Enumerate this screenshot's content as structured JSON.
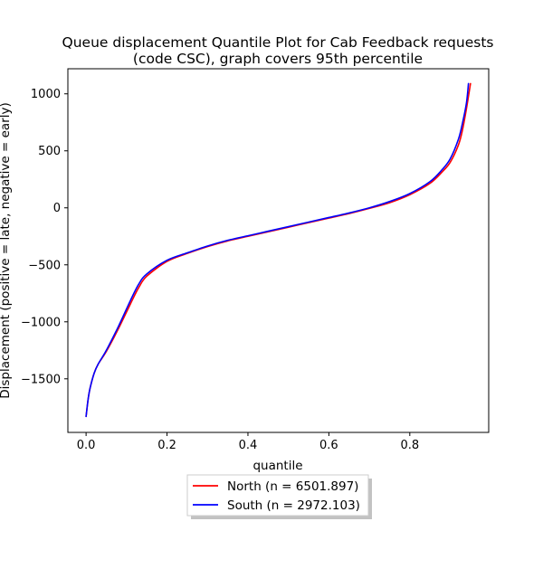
{
  "chart_data": {
    "type": "line",
    "title_lines": [
      "Queue displacement Quantile Plot for Cab Feedback  requests",
      "(code CSC), graph covers 95th percentile"
    ],
    "xlabel": "quantile",
    "ylabel": "Displacement (positive = late, negative = early)",
    "xlim": [
      -0.045,
      0.995
    ],
    "ylim": [
      -1970,
      1220
    ],
    "xticks": [
      0.0,
      0.2,
      0.4,
      0.6,
      0.8
    ],
    "xtick_labels": [
      "0.0",
      "0.2",
      "0.4",
      "0.6",
      "0.8"
    ],
    "yticks": [
      -1500,
      -1000,
      -500,
      0,
      500,
      1000
    ],
    "ytick_labels": [
      "−1500",
      "−1000",
      "−500",
      "0",
      "500",
      "1000"
    ],
    "grid": false,
    "legend_position": "below plot, centered",
    "series": [
      {
        "name": "North (n = 6501.897)",
        "color": "#ff0000",
        "x": [
          0.0,
          0.005,
          0.01,
          0.02,
          0.03,
          0.05,
          0.08,
          0.11,
          0.13,
          0.15,
          0.2,
          0.25,
          0.3,
          0.35,
          0.4,
          0.45,
          0.5,
          0.55,
          0.6,
          0.65,
          0.7,
          0.75,
          0.8,
          0.85,
          0.88,
          0.9,
          0.92,
          0.93,
          0.94,
          0.95
        ],
        "y": [
          -1830,
          -1680,
          -1580,
          -1450,
          -1370,
          -1260,
          -1060,
          -840,
          -700,
          -600,
          -470,
          -400,
          -340,
          -290,
          -250,
          -210,
          -170,
          -130,
          -90,
          -50,
          -5,
          45,
          115,
          215,
          315,
          400,
          550,
          680,
          870,
          1090
        ]
      },
      {
        "name": "South (n = 2972.103)",
        "color": "#0000ff",
        "x": [
          0.0,
          0.005,
          0.01,
          0.02,
          0.03,
          0.05,
          0.08,
          0.11,
          0.13,
          0.15,
          0.2,
          0.25,
          0.3,
          0.35,
          0.4,
          0.45,
          0.5,
          0.55,
          0.6,
          0.65,
          0.7,
          0.75,
          0.8,
          0.85,
          0.88,
          0.9,
          0.92,
          0.93,
          0.94,
          0.945
        ],
        "y": [
          -1830,
          -1680,
          -1580,
          -1450,
          -1370,
          -1250,
          -1040,
          -810,
          -670,
          -580,
          -460,
          -395,
          -335,
          -285,
          -245,
          -205,
          -165,
          -125,
          -85,
          -45,
          0,
          55,
          125,
          230,
          335,
          430,
          600,
          740,
          920,
          1090
        ]
      }
    ]
  }
}
